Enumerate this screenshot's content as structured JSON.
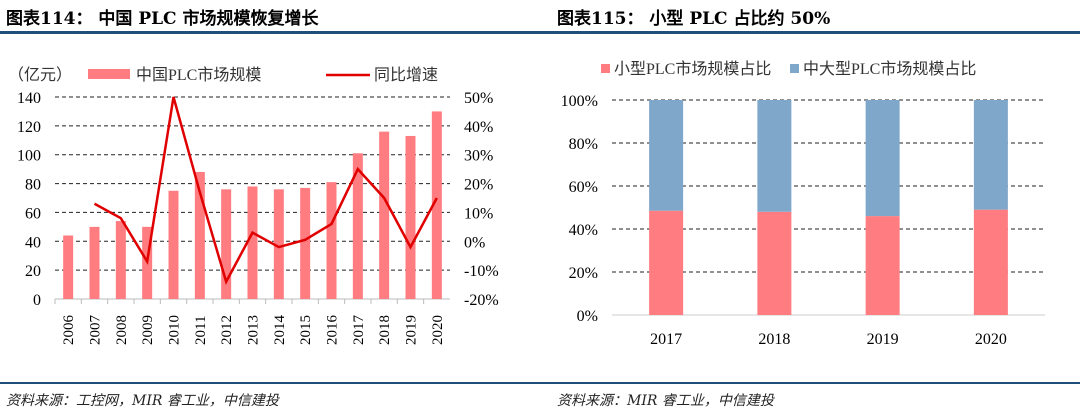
{
  "left": {
    "title": "图表114： 中国 PLC 市场规模恢复增长",
    "source": "资料来源：工控网，MIR 睿工业，中信建投"
  },
  "right": {
    "title": "图表115： 小型 PLC 占比约 50%",
    "source": "资料来源：MIR 睿工业，中信建投"
  },
  "chart_data": [
    {
      "type": "bar+line",
      "unit_label": "（亿元）",
      "categories": [
        "2006",
        "2007",
        "2008",
        "2009",
        "2010",
        "2011",
        "2012",
        "2013",
        "2014",
        "2015",
        "2016",
        "2017",
        "2018",
        "2019",
        "2020"
      ],
      "series": [
        {
          "name": "中国PLC市场规模",
          "type": "bar",
          "axis": "left",
          "color": "#ff7c80",
          "values": [
            44,
            50,
            54,
            50,
            75,
            88,
            76,
            78,
            76,
            77,
            81,
            101,
            116,
            113,
            130
          ]
        },
        {
          "name": "同比增速",
          "type": "line",
          "axis": "right",
          "color": "#e00000",
          "values": [
            null,
            13,
            8,
            -7,
            50,
            17,
            -14,
            3,
            -2,
            0.5,
            6,
            25,
            15,
            -2,
            15
          ]
        }
      ],
      "ylim": [
        0,
        140
      ],
      "yticks": [
        "0",
        "20",
        "40",
        "60",
        "80",
        "100",
        "120",
        "140"
      ],
      "y2lim": [
        -20,
        50
      ],
      "y2ticks": [
        "-20%",
        "-10%",
        "0%",
        "10%",
        "20%",
        "30%",
        "40%",
        "50%"
      ],
      "grid": true,
      "legend": "top"
    },
    {
      "type": "stacked-bar",
      "categories": [
        "2017",
        "2018",
        "2019",
        "2020"
      ],
      "series": [
        {
          "name": "小型PLC市场规模占比",
          "color": "#ff7c80",
          "values": [
            48.5,
            48,
            46,
            49
          ]
        },
        {
          "name": "中大型PLC市场规模占比",
          "color": "#7fa7c9",
          "values": [
            51.5,
            52,
            54,
            51
          ]
        }
      ],
      "ylim": [
        0,
        100
      ],
      "yticks": [
        "0%",
        "20%",
        "40%",
        "60%",
        "80%",
        "100%"
      ],
      "grid": true,
      "legend": "top"
    }
  ]
}
